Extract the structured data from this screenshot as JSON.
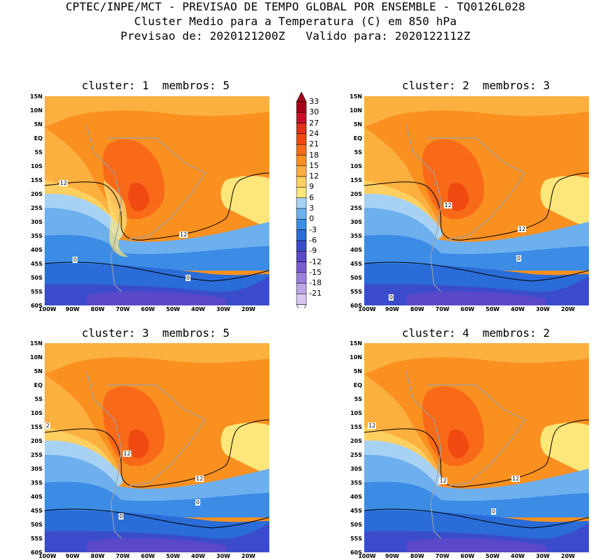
{
  "header": {
    "line1": "CPTEC/INPE/MCT - PREVISAO DE TEMPO GLOBAL POR ENSEMBLE - TQ0126L028",
    "line2": "Cluster Medio para a Temperatura (C) em 850 hPa",
    "line3": "Previsao de: 2020121200Z   Valido para: 2020122112Z"
  },
  "panels": [
    {
      "title": "cluster: 1  membros: 5",
      "labels": [
        "12",
        "12",
        "0",
        "0"
      ]
    },
    {
      "title": "cluster: 2  membros: 3",
      "labels": [
        "12",
        "12",
        "0",
        "0"
      ]
    },
    {
      "title": "cluster: 3  membros: 5",
      "labels": [
        "2",
        "12",
        "12",
        "0",
        "0"
      ]
    },
    {
      "title": "cluster: 4  membros: 2",
      "labels": [
        "12",
        "12",
        "12",
        "0"
      ]
    }
  ],
  "lat_ticks": [
    "15N",
    "10N",
    "5N",
    "EQ",
    "5S",
    "10S",
    "15S",
    "20S",
    "25S",
    "30S",
    "35S",
    "40S",
    "45S",
    "50S",
    "55S",
    "60S"
  ],
  "lon_ticks": [
    "100W",
    "90W",
    "80W",
    "70W",
    "60W",
    "50W",
    "40W",
    "30W",
    "20W"
  ],
  "colorbar": {
    "labels": [
      "33",
      "30",
      "27",
      "24",
      "21",
      "18",
      "15",
      "12",
      "9",
      "6",
      "3",
      "0",
      "-3",
      "-6",
      "-9",
      "-12",
      "-15",
      "-18",
      "-21"
    ],
    "colors": [
      "#a4001a",
      "#c8102a",
      "#e0301e",
      "#f04a10",
      "#f86a18",
      "#fa9020",
      "#fbb040",
      "#fdd060",
      "#fde67a",
      "#a8d2f4",
      "#6eb0ee",
      "#3c8ce6",
      "#2a6cd8",
      "#3a4ccc",
      "#5a48c8",
      "#7a5cd2",
      "#9a80dc",
      "#bca6e6",
      "#d8c8f0"
    ]
  }
}
